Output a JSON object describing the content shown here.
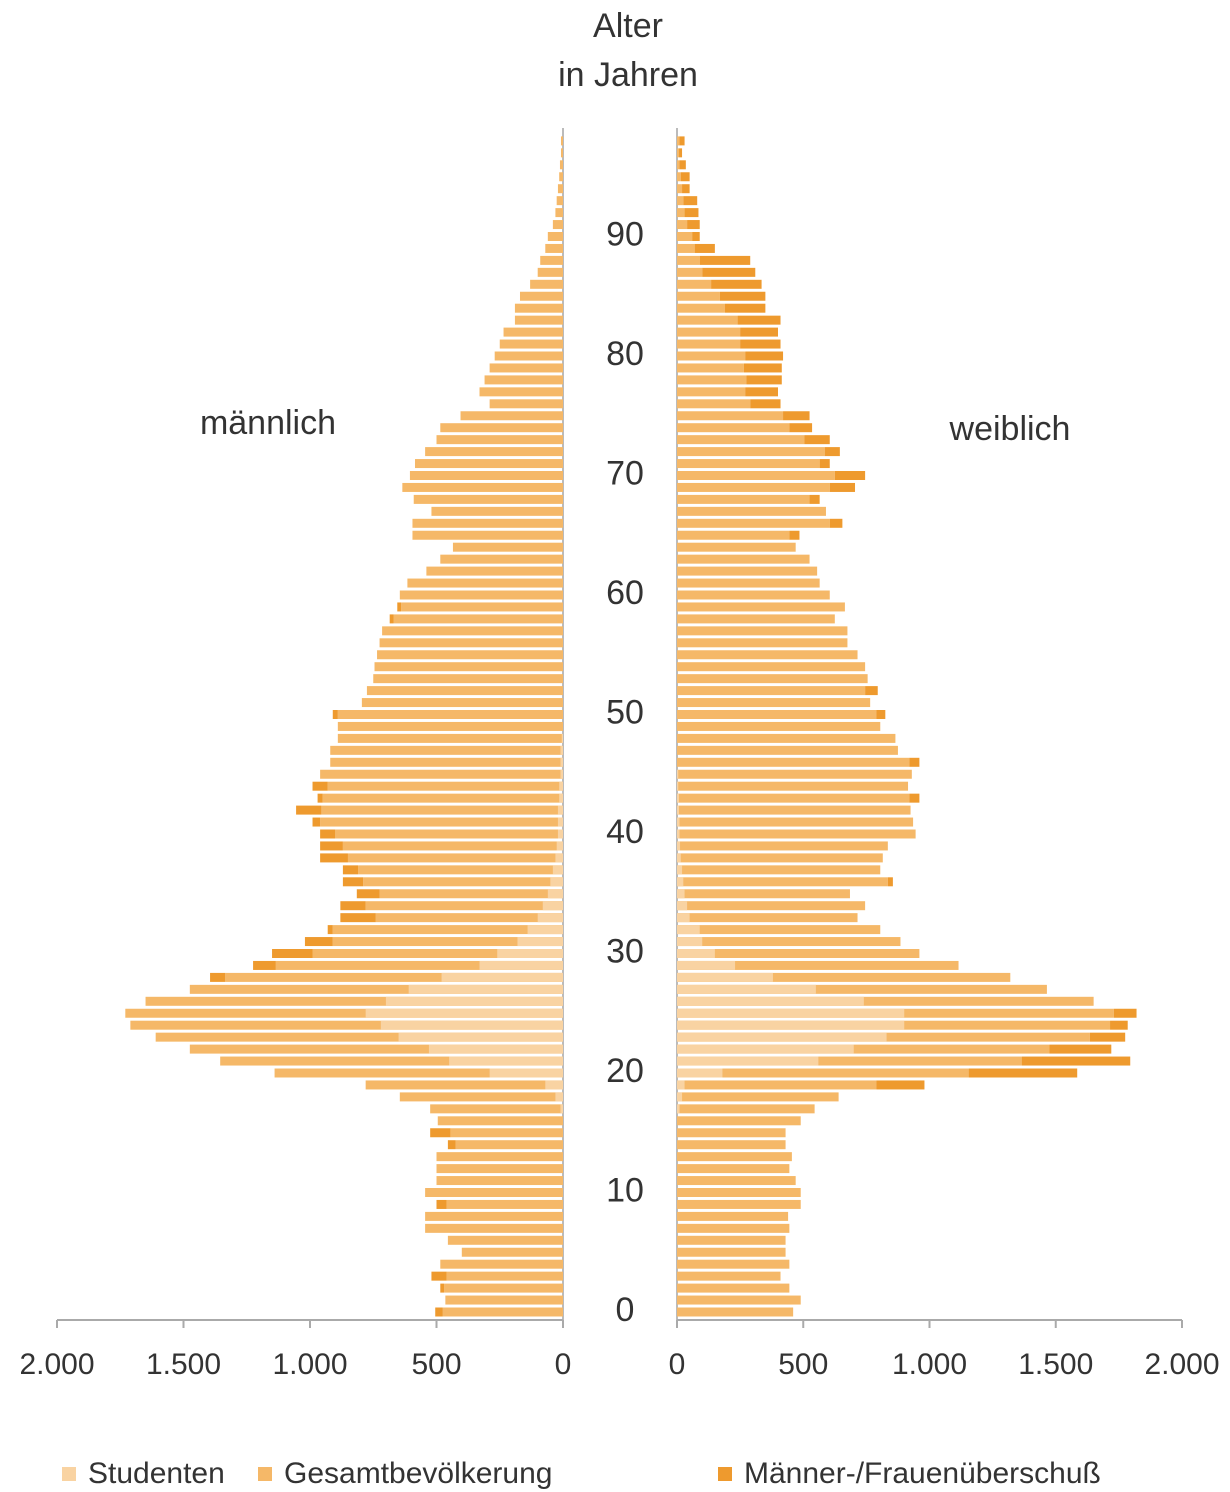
{
  "chart_data": {
    "type": "pyramid",
    "age_axis_label": [
      "Alter",
      "in Jahren"
    ],
    "left_label": "männlich",
    "right_label": "weiblich",
    "categories": [
      0,
      null,
      null,
      null,
      null,
      null,
      null,
      null,
      null,
      null,
      10,
      null,
      null,
      null,
      null,
      null,
      null,
      null,
      null,
      null,
      20,
      null,
      null,
      null,
      null,
      null,
      null,
      null,
      null,
      null,
      30,
      null,
      null,
      null,
      null,
      null,
      null,
      null,
      null,
      null,
      40,
      null,
      null,
      null,
      null,
      null,
      null,
      null,
      null,
      null,
      50,
      null,
      null,
      null,
      null,
      null,
      null,
      null,
      null,
      null,
      60,
      null,
      null,
      null,
      null,
      null,
      null,
      null,
      null,
      null,
      70,
      null,
      null,
      null,
      null,
      null,
      null,
      null,
      null,
      null,
      80,
      null,
      null,
      null,
      null,
      null,
      null,
      null,
      null,
      null,
      90,
      null,
      null,
      null,
      null,
      null,
      null,
      null,
      null
    ],
    "xlim": [
      0,
      2000
    ],
    "xticks": [
      {
        "value": 2000,
        "label": "2.000"
      },
      {
        "value": 1500,
        "label": "1.500"
      },
      {
        "value": 1000,
        "label": "1.000"
      },
      500,
      0
    ],
    "series": [
      {
        "name": "Studenten",
        "color": "#f9d3a2",
        "male": [
          0,
          0,
          0,
          0,
          0,
          0,
          0,
          0,
          0,
          0,
          0,
          0,
          0,
          0,
          0,
          0,
          0,
          10,
          30,
          70,
          290,
          450,
          530,
          650,
          720,
          780,
          700,
          610,
          480,
          330,
          260,
          180,
          140,
          100,
          80,
          60,
          50,
          40,
          30,
          25,
          20,
          20,
          20,
          15,
          15,
          10,
          10,
          10,
          5,
          0,
          0,
          0,
          0,
          0,
          0,
          0,
          0,
          0,
          0,
          0,
          0,
          0,
          0,
          0,
          0,
          0,
          0,
          0,
          0,
          0,
          0,
          0,
          0,
          0,
          0,
          0,
          0,
          0,
          0,
          0,
          0,
          0,
          0,
          0,
          0,
          0,
          0,
          0,
          0,
          0,
          0,
          0,
          0,
          0,
          0,
          0,
          0,
          0,
          0
        ],
        "female": [
          0,
          0,
          0,
          0,
          0,
          0,
          0,
          0,
          0,
          0,
          0,
          0,
          0,
          0,
          0,
          0,
          0,
          10,
          20,
          30,
          180,
          560,
          700,
          830,
          900,
          900,
          740,
          550,
          380,
          230,
          150,
          100,
          90,
          50,
          40,
          30,
          25,
          20,
          15,
          12,
          10,
          10,
          8,
          8,
          5,
          5,
          0,
          0,
          0,
          0,
          0,
          0,
          0,
          0,
          0,
          0,
          0,
          0,
          0,
          0,
          0,
          0,
          0,
          0,
          0,
          0,
          0,
          0,
          0,
          0,
          0,
          0,
          0,
          0,
          0,
          0,
          0,
          0,
          0,
          0,
          0,
          0,
          0,
          0,
          0,
          0,
          0,
          0,
          0,
          0,
          0,
          0,
          0,
          0,
          0,
          0,
          0,
          0,
          0
        ]
      },
      {
        "name": "Gesamtbevölkerung",
        "color": "#f5b868",
        "male": [
          475,
          465,
          470,
          460,
          485,
          400,
          455,
          545,
          545,
          460,
          545,
          500,
          500,
          500,
          425,
          445,
          495,
          525,
          645,
          780,
          1140,
          1355,
          1475,
          1610,
          1710,
          1730,
          1650,
          1475,
          1335,
          1135,
          990,
          910,
          910,
          740,
          780,
          725,
          790,
          810,
          850,
          870,
          900,
          960,
          955,
          950,
          930,
          960,
          920,
          920,
          890,
          890,
          890,
          795,
          775,
          750,
          745,
          735,
          725,
          715,
          670,
          640,
          645,
          615,
          540,
          485,
          435,
          595,
          595,
          520,
          590,
          635,
          605,
          585,
          545,
          500,
          485,
          405,
          290,
          330,
          310,
          290,
          270,
          250,
          235,
          190,
          190,
          170,
          130,
          100,
          90,
          70,
          60,
          40,
          30,
          25,
          20,
          15,
          12,
          8,
          8
        ],
        "female": [
          460,
          490,
          445,
          410,
          445,
          430,
          430,
          445,
          440,
          490,
          490,
          470,
          445,
          455,
          430,
          430,
          490,
          545,
          640,
          790,
          1155,
          1365,
          1475,
          1635,
          1715,
          1730,
          1650,
          1465,
          1320,
          1115,
          960,
          885,
          805,
          715,
          745,
          685,
          835,
          805,
          815,
          835,
          945,
          935,
          925,
          920,
          915,
          930,
          920,
          875,
          865,
          805,
          790,
          765,
          745,
          755,
          745,
          715,
          675,
          675,
          625,
          665,
          605,
          565,
          555,
          525,
          470,
          445,
          605,
          590,
          525,
          605,
          625,
          565,
          585,
          505,
          445,
          420,
          290,
          270,
          275,
          265,
          270,
          250,
          250,
          240,
          190,
          170,
          135,
          100,
          90,
          70,
          60,
          40,
          30,
          25,
          20,
          15,
          10,
          8,
          10
        ]
      },
      {
        "name": "Männer-/Frauenüberschuß",
        "color": "#ee9a2e",
        "male": [
          30,
          0,
          15,
          60,
          0,
          0,
          0,
          0,
          0,
          40,
          0,
          0,
          0,
          0,
          30,
          80,
          0,
          0,
          0,
          0,
          0,
          0,
          0,
          0,
          0,
          0,
          0,
          0,
          60,
          90,
          160,
          110,
          20,
          140,
          100,
          90,
          80,
          60,
          110,
          90,
          60,
          30,
          100,
          20,
          60,
          0,
          0,
          0,
          0,
          0,
          20,
          0,
          0,
          0,
          0,
          0,
          0,
          0,
          15,
          15,
          0,
          0,
          0,
          0,
          0,
          0,
          0,
          0,
          0,
          0,
          0,
          0,
          0,
          0,
          0,
          0,
          0,
          0,
          0,
          0,
          0,
          0,
          0,
          0,
          0,
          0,
          0,
          0,
          0,
          0,
          0,
          0,
          0,
          0,
          0,
          0,
          0,
          0,
          0
        ],
        "female": [
          0,
          0,
          0,
          0,
          0,
          0,
          0,
          0,
          0,
          0,
          0,
          0,
          0,
          0,
          0,
          0,
          0,
          0,
          0,
          190,
          430,
          430,
          245,
          140,
          70,
          90,
          0,
          0,
          0,
          0,
          0,
          0,
          0,
          0,
          0,
          0,
          20,
          0,
          0,
          0,
          0,
          0,
          0,
          40,
          0,
          0,
          40,
          0,
          0,
          0,
          35,
          0,
          50,
          0,
          0,
          0,
          0,
          0,
          0,
          0,
          0,
          0,
          0,
          0,
          0,
          40,
          50,
          0,
          40,
          100,
          120,
          40,
          60,
          100,
          90,
          105,
          120,
          130,
          140,
          150,
          150,
          160,
          150,
          170,
          160,
          180,
          200,
          210,
          200,
          80,
          30,
          50,
          55,
          55,
          30,
          35,
          25,
          12,
          20
        ]
      }
    ]
  }
}
